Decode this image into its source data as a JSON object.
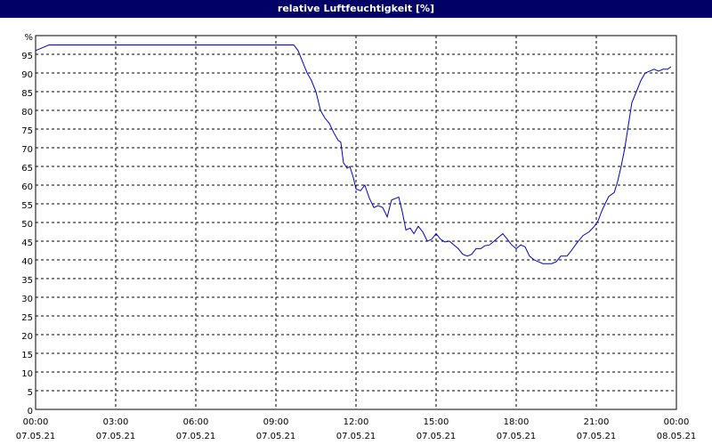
{
  "chart_data": {
    "type": "line",
    "title": "relative Luftfeuchtigkeit [%]",
    "x": [
      0,
      0.17,
      0.5,
      9.67,
      9.83,
      10,
      10.17,
      10.33,
      10.5,
      10.67,
      10.83,
      11,
      11.17,
      11.33,
      11.43,
      11.53,
      11.67,
      11.77,
      11.9,
      12,
      12.17,
      12.33,
      12.5,
      12.67,
      12.83,
      13,
      13.17,
      13.33,
      13.5,
      13.6,
      13.73,
      13.87,
      14.03,
      14.17,
      14.33,
      14.5,
      14.67,
      14.83,
      15,
      15.17,
      15.33,
      15.5,
      15.67,
      15.83,
      16,
      16.17,
      16.33,
      16.5,
      16.67,
      16.83,
      17,
      17.17,
      17.33,
      17.5,
      17.67,
      17.83,
      18,
      18.17,
      18.33,
      18.5,
      18.67,
      18.83,
      19,
      19.33,
      19.5,
      19.67,
      19.9,
      20.07,
      20.27,
      20.5,
      20.73,
      20.93,
      21.07,
      21.2,
      21.33,
      21.47,
      21.67,
      21.8,
      21.93,
      22.07,
      22.2,
      22.33,
      22.5,
      22.67,
      22.83,
      23,
      23.17,
      23.33,
      23.5,
      23.67,
      23.8
    ],
    "series": [
      {
        "color": "#0000cc",
        "values": [
          96,
          96.5,
          97.5,
          97.5,
          96,
          93,
          90,
          88,
          85,
          80,
          78,
          76.5,
          74,
          72,
          71.5,
          66,
          64.5,
          65,
          62,
          59,
          58.5,
          60,
          56.5,
          54,
          54.5,
          54,
          51.5,
          56,
          56.5,
          56.8,
          53,
          48,
          48.5,
          47,
          49,
          47.5,
          45,
          45.5,
          47,
          45.5,
          44.8,
          45,
          44,
          43,
          41.5,
          41,
          41.5,
          43,
          43,
          43.8,
          44,
          45,
          46,
          47,
          45.5,
          44,
          43,
          44,
          43.5,
          41,
          40,
          39.5,
          39,
          39,
          39.5,
          41,
          41,
          42.5,
          44.5,
          46.5,
          47.5,
          49,
          50.5,
          53,
          55,
          57,
          58,
          61,
          65,
          70,
          76,
          82,
          85,
          88,
          90,
          90.5,
          91,
          90.5,
          91,
          91,
          91.7
        ]
      }
    ],
    "xlim": [
      0,
      24
    ],
    "xticks": [
      {
        "value": 0,
        "label": "00:00"
      },
      {
        "value": 3,
        "label": "03:00"
      },
      {
        "value": 6,
        "label": "06:00"
      },
      {
        "value": 9,
        "label": "09:00"
      },
      {
        "value": 12,
        "label": "12:00"
      },
      {
        "value": 15,
        "label": "15:00"
      },
      {
        "value": 18,
        "label": "18:00"
      },
      {
        "value": 21,
        "label": "21:00"
      },
      {
        "value": 24,
        "label": "00:00"
      }
    ],
    "xtick_dates": [
      "07.05.21",
      "07.05.21",
      "07.05.21",
      "07.05.21",
      "07.05.21",
      "07.05.21",
      "07.05.21",
      "07.05.21",
      "08.05.21"
    ],
    "ylim": [
      0,
      100
    ],
    "yticks": [
      0,
      5,
      10,
      15,
      20,
      25,
      30,
      35,
      40,
      45,
      50,
      55,
      60,
      65,
      70,
      75,
      80,
      85,
      90,
      95,
      {
        "value": 100,
        "label": "%"
      }
    ],
    "grid": true
  }
}
